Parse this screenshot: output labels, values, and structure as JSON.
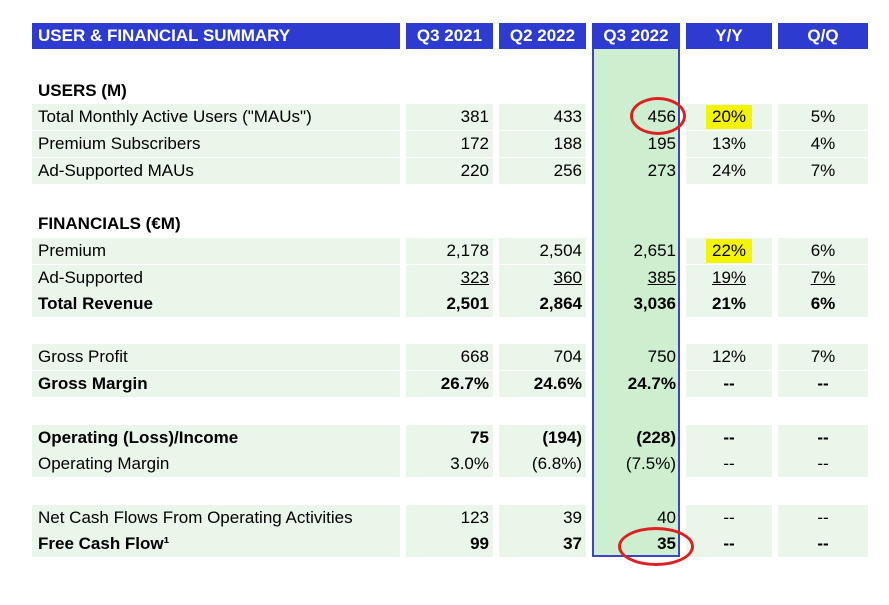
{
  "table": {
    "title": "USER & FINANCIAL SUMMARY",
    "columns": [
      "Q3 2021",
      "Q2 2022",
      "Q3 2022",
      "Y/Y",
      "Q/Q"
    ],
    "sections": {
      "users": "USERS (M)",
      "financials": "FINANCIALS (€M)"
    },
    "rows": {
      "mau": {
        "label": "Total Monthly Active Users (\"MAUs\")",
        "values": [
          "381",
          "433",
          "456",
          "20%",
          "5%"
        ]
      },
      "premium_subs": {
        "label": "Premium Subscribers",
        "values": [
          "172",
          "188",
          "195",
          "13%",
          "4%"
        ]
      },
      "ad_maus": {
        "label": "Ad-Supported MAUs",
        "values": [
          "220",
          "256",
          "273",
          "24%",
          "7%"
        ]
      },
      "premium": {
        "label": "Premium",
        "values": [
          "2,178",
          "2,504",
          "2,651",
          "22%",
          "6%"
        ]
      },
      "ad_supported": {
        "label": "Ad-Supported",
        "values": [
          "323",
          "360",
          "385",
          "19%",
          "7%"
        ]
      },
      "total_revenue": {
        "label": "Total Revenue",
        "values": [
          "2,501",
          "2,864",
          "3,036",
          "21%",
          "6%"
        ]
      },
      "gross_profit": {
        "label": "Gross Profit",
        "values": [
          "668",
          "704",
          "750",
          "12%",
          "7%"
        ]
      },
      "gross_margin": {
        "label": "Gross Margin",
        "values": [
          "26.7%",
          "24.6%",
          "24.7%",
          "--",
          "--"
        ]
      },
      "operating_income": {
        "label": "Operating (Loss)/Income",
        "values": [
          "75",
          "(194)",
          "(228)",
          "--",
          "--"
        ]
      },
      "operating_margin": {
        "label": "Operating Margin",
        "values": [
          "3.0%",
          "(6.8%)",
          "(7.5%)",
          "--",
          "--"
        ]
      },
      "net_cash": {
        "label": "Net Cash Flows From Operating Activities",
        "values": [
          "123",
          "39",
          "40",
          "--",
          "--"
        ]
      },
      "fcf": {
        "label": "Free Cash Flow¹",
        "values": [
          "99",
          "37",
          "35",
          "--",
          "--"
        ]
      }
    }
  },
  "colors": {
    "header": "#2d3bd1",
    "highlight": "#f4f400",
    "circle": "#e02020",
    "q3_column": "#cdeecf",
    "row_tint": "#eaf6ea"
  }
}
